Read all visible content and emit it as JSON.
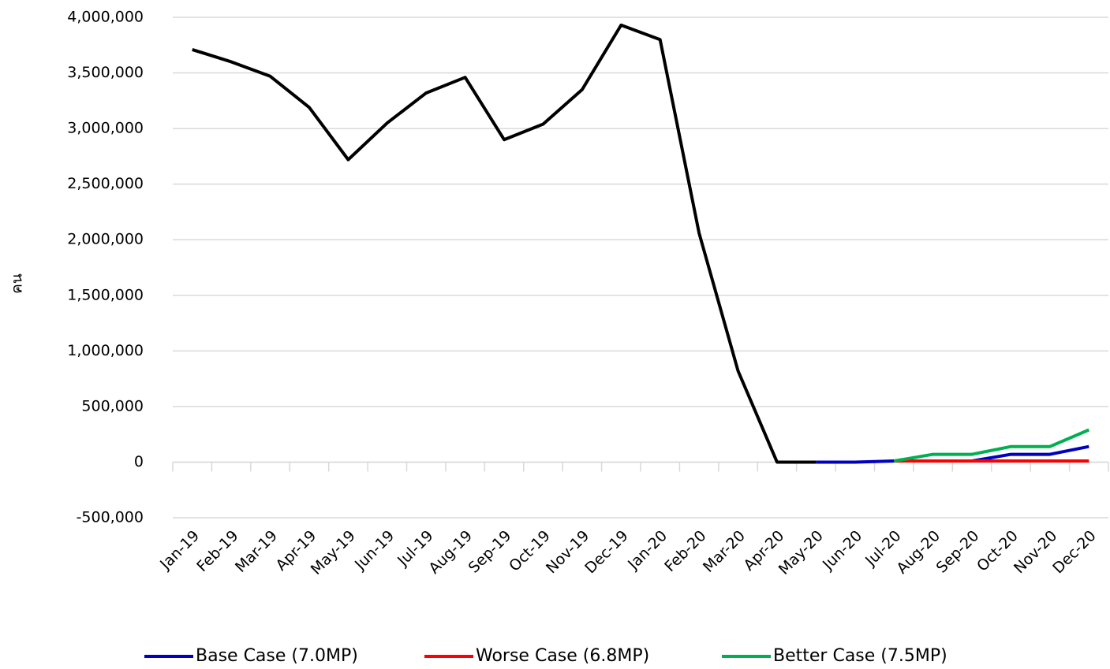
{
  "chart_data": {
    "type": "line",
    "y_label": "คน",
    "categories": [
      "Jan-19",
      "Feb-19",
      "Mar-19",
      "Apr-19",
      "May-19",
      "Jun-19",
      "Jul-19",
      "Aug-19",
      "Sep-19",
      "Oct-19",
      "Nov-19",
      "Dec-19",
      "Jan-20",
      "Feb-20",
      "Mar-20",
      "Apr-20",
      "May-20",
      "Jun-20",
      "Jul-20",
      "Aug-20",
      "Sep-20",
      "Oct-20",
      "Nov-20",
      "Dec-20"
    ],
    "series": [
      {
        "color": "#000000",
        "values": [
          3710000,
          3600000,
          3470000,
          3190000,
          2720000,
          3050000,
          3320000,
          3460000,
          2900000,
          3040000,
          3350000,
          3930000,
          3800000,
          2060000,
          820000,
          0,
          0,
          null,
          null,
          null,
          null,
          null,
          null,
          null
        ]
      },
      {
        "name": "Base Case (7.0MP)",
        "color": "#0000c0",
        "values": [
          null,
          null,
          null,
          null,
          null,
          null,
          null,
          null,
          null,
          null,
          null,
          null,
          null,
          null,
          null,
          null,
          0,
          0,
          10000,
          10000,
          10000,
          70000,
          70000,
          140000
        ]
      },
      {
        "name": "Worse Case (6.8MP)",
        "color": "#ff0000",
        "values": [
          null,
          null,
          null,
          null,
          null,
          null,
          null,
          null,
          null,
          null,
          null,
          null,
          null,
          null,
          null,
          null,
          null,
          null,
          10000,
          10000,
          10000,
          10000,
          10000,
          10000
        ]
      },
      {
        "name": "Better Case (7.5MP)",
        "color": "#00b050",
        "values": [
          null,
          null,
          null,
          null,
          null,
          null,
          null,
          null,
          null,
          null,
          null,
          null,
          null,
          null,
          null,
          null,
          null,
          null,
          10000,
          70000,
          70000,
          140000,
          140000,
          290000
        ]
      }
    ],
    "ylim": [
      -500000,
      4000000
    ],
    "yticks": [
      {
        "value": -500000,
        "label": "-500,000"
      },
      0,
      {
        "value": 500000,
        "label": "500,000"
      },
      {
        "value": 1000000,
        "label": "1,000,000"
      },
      {
        "value": 1500000,
        "label": "1,500,000"
      },
      {
        "value": 2000000,
        "label": "2,000,000"
      },
      {
        "value": 2500000,
        "label": "2,500,000"
      },
      {
        "value": 3000000,
        "label": "3,000,000"
      },
      {
        "value": 3500000,
        "label": "3,500,000"
      },
      {
        "value": 4000000,
        "label": "4,000,000"
      }
    ],
    "grid": true,
    "legend": "bottom"
  }
}
